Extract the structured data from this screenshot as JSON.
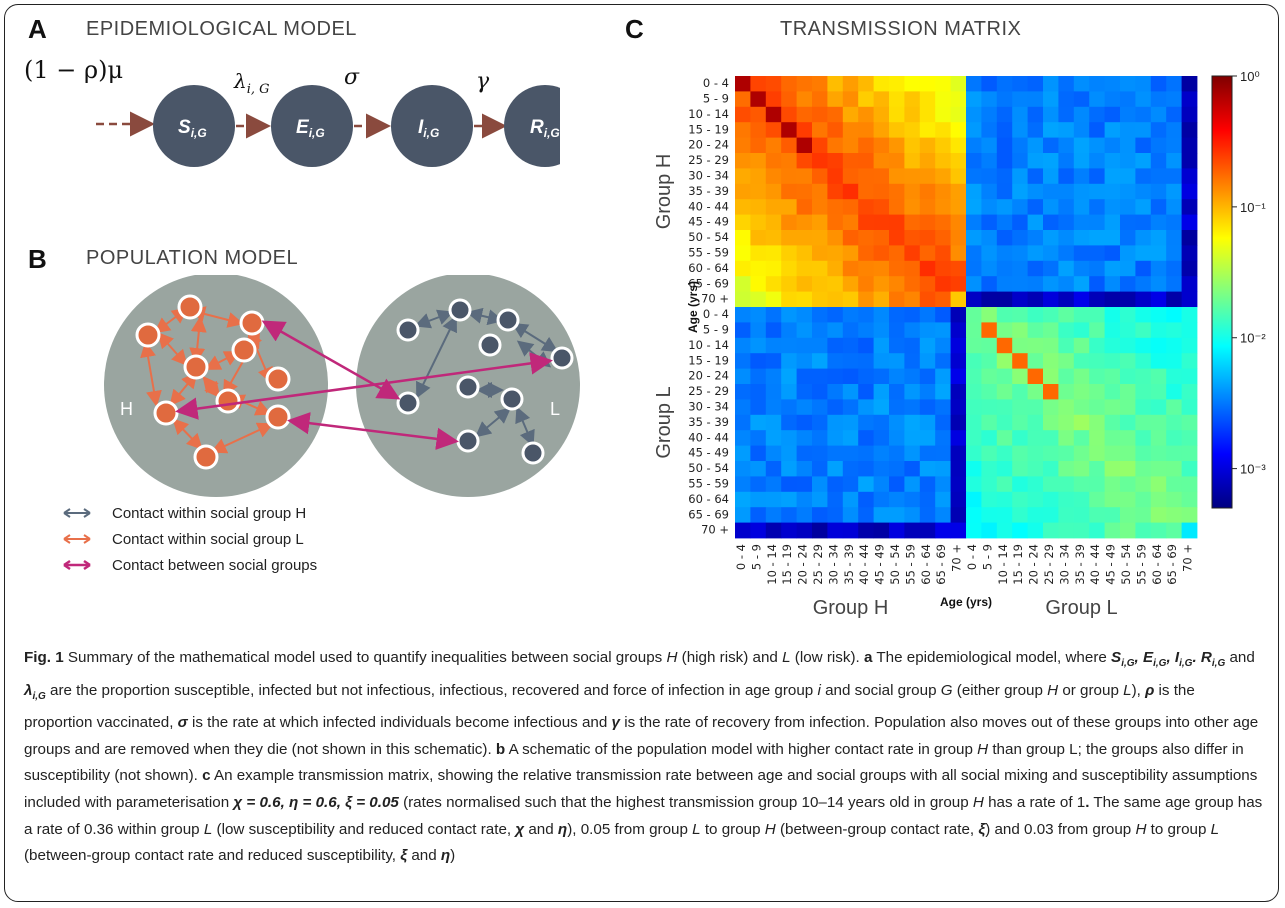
{
  "panels": {
    "a": {
      "letter": "A",
      "title": "EPIDEMIOLOGICAL MODEL"
    },
    "b": {
      "letter": "B",
      "title": "POPULATION MODEL"
    },
    "c": {
      "letter": "C",
      "title": "TRANSMISSION MATRIX"
    }
  },
  "epi_model": {
    "inflow_label": "(1 − ρ)μ",
    "compartments": [
      {
        "sym": "S",
        "sub": "i,G"
      },
      {
        "sym": "E",
        "sub": "i,G"
      },
      {
        "sym": "I",
        "sub": "i,G"
      },
      {
        "sym": "R",
        "sub": "i,G"
      }
    ],
    "rates": [
      {
        "sym": "λ",
        "sub": "i, G"
      },
      {
        "sym": "σ",
        "sub": ""
      },
      {
        "sym": "γ",
        "sub": ""
      }
    ]
  },
  "population_model": {
    "group_h_label": "H",
    "group_l_label": "L",
    "legend": [
      {
        "label": "Contact within social group H",
        "color": "#5b6b7d"
      },
      {
        "label": "Contact within social group L",
        "color": "#e8704a"
      },
      {
        "label": "Contact between social groups",
        "color": "#c0287a"
      }
    ]
  },
  "colors": {
    "node_dark": "#4a5668",
    "group_circle": "#9aa5a0",
    "node_orange": "#e06a3f",
    "arrow_brown": "#8a4a3e",
    "arrow_blue": "#5b6b7d",
    "arrow_orange": "#e8704a",
    "arrow_magenta": "#c0287a"
  },
  "chart_data": {
    "type": "heatmap",
    "title": "TRANSMISSION MATRIX",
    "age_groups": [
      "0 - 4",
      "5 - 9",
      "10 - 14",
      "15 - 19",
      "20 - 24",
      "25 - 29",
      "30 - 34",
      "35 - 39",
      "40 - 44",
      "45 - 49",
      "50 - 54",
      "55 - 59",
      "60 - 64",
      "65 - 69",
      "70 +"
    ],
    "row_groups": [
      "Group H",
      "Group L"
    ],
    "col_groups": [
      "Group H",
      "Group L"
    ],
    "xlabel": "Age (yrs)",
    "ylabel": "Age (yrs)",
    "colorbar": {
      "scale": "log",
      "ticks": [
        "10⁰",
        "10⁻¹",
        "10⁻²",
        "10⁻³"
      ],
      "range": [
        0.0005,
        1
      ]
    },
    "block_summary": {
      "H_to_H": "high (10^-1 to 10^0)",
      "L_to_L": "medium (10^-2 to 10^-1)",
      "between_groups": "low (10^-3 to 10^-2)"
    }
  },
  "caption": {
    "fig_label": "Fig. 1",
    "p1": "Summary of the mathematical model used to quantify inequalities between social groups ",
    "p1_H": "H",
    "p2": " (high risk) and ",
    "p2_L": "L",
    "p3": " (low risk). ",
    "a": "a",
    "p4": " The epidemiological model, where ",
    "p5": " and ",
    "p6": " are the proportion susceptible, infected but not infectious, infectious, recovered and force of infection in age group ",
    "p6_i": "i",
    "p7": " and social group ",
    "p7_G": "G",
    "p8": " (either group ",
    "p8_H": "H",
    "p9": " or group ",
    "p9_L": "L",
    "p10": "), ",
    "rho": "ρ",
    "p11": " is the proportion vaccinated, ",
    "sigma": "σ",
    "p12": " is the rate at which infected individuals become infectious and ",
    "gamma": "γ",
    "p13": " is the rate of recovery from infection. Population also moves out of these groups into other age groups and are removed when they die (not shown in this schematic). ",
    "b": "b",
    "p14": " A schematic of the population model with higher contact rate in group ",
    "p14_H": "H",
    "p15": " than group L; the groups also differ in susceptibility (not shown). ",
    "c": "c",
    "p16": " An example transmission matrix, showing the relative transmission rate between age and social groups with all social mixing and susceptibility assumptions included with parameterisation ",
    "params": "χ = 0.6, η = 0.6, ξ = 0.05",
    "p17": " (rates normalised such that the highest transmission group 10–14 years old in group ",
    "p17_H": "H",
    "p18": " has a rate of 1",
    "p18_dot": ".",
    "p19": " The same age group has a rate of 0.36 within group ",
    "p19_L": "L",
    "p20": " (low susceptibility and reduced contact rate, ",
    "chi": "χ",
    "p21": " and ",
    "eta": "η",
    "p22": "), 0.05 from group ",
    "p22_L": "L",
    "p23": " to group ",
    "p23_H": "H",
    "p24": " (between-group contact rate, ",
    "xi": "ξ",
    "p25": ") and 0.03 from group ",
    "p25_H": "H",
    "p26": " to group ",
    "p26_L": "L",
    "p27": " (between-group contact rate and reduced susceptibility, ",
    "xi2": "ξ",
    "p28": " and ",
    "eta2": "η",
    "p29": ")"
  }
}
